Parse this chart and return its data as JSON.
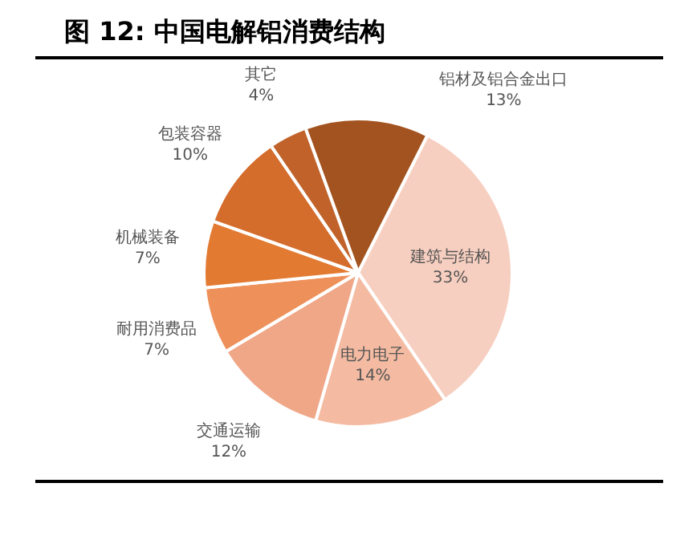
{
  "chart_data": {
    "type": "pie",
    "title": "图 12: 中国电解铝消费结构",
    "categories": [
      "铝材及铝合金出口",
      "建筑与结构",
      "电力电子",
      "交通运输",
      "耐用消费品",
      "机械装备",
      "包装容器",
      "其它"
    ],
    "values": [
      13,
      33,
      14,
      12,
      7,
      7,
      10,
      4
    ],
    "colors": [
      "#a3531f",
      "#f7cfc0",
      "#f4bba2",
      "#f0a788",
      "#ee9059",
      "#e37a32",
      "#d46c2c",
      "#c0622a"
    ],
    "value_labels": [
      "13%",
      "33%",
      "14%",
      "12%",
      "7%",
      "7%",
      "10%",
      "4%"
    ]
  }
}
